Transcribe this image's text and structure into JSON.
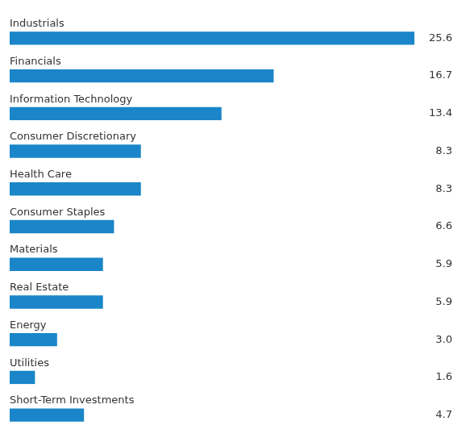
{
  "chart_data": {
    "type": "bar",
    "orientation": "horizontal",
    "categories": [
      "Short-Term Investments",
      "Utilities",
      "Energy",
      "Real Estate",
      "Materials",
      "Consumer Staples",
      "Health Care",
      "Consumer Discretionary",
      "Information Technology",
      "Financials",
      "Industrials"
    ],
    "values": [
      4.7,
      1.6,
      3.0,
      5.9,
      5.9,
      6.6,
      8.3,
      8.3,
      13.4,
      16.7,
      25.6
    ],
    "value_labels": [
      "4.7",
      "1.6",
      "3.0",
      "5.9",
      "5.9",
      "6.6",
      "8.3",
      "8.3",
      "13.4",
      "16.7",
      "25.6"
    ],
    "color": "#1a85c8",
    "xlim": [
      0,
      28
    ],
    "data_labels": true,
    "tick_labels": false,
    "grid": false
  }
}
